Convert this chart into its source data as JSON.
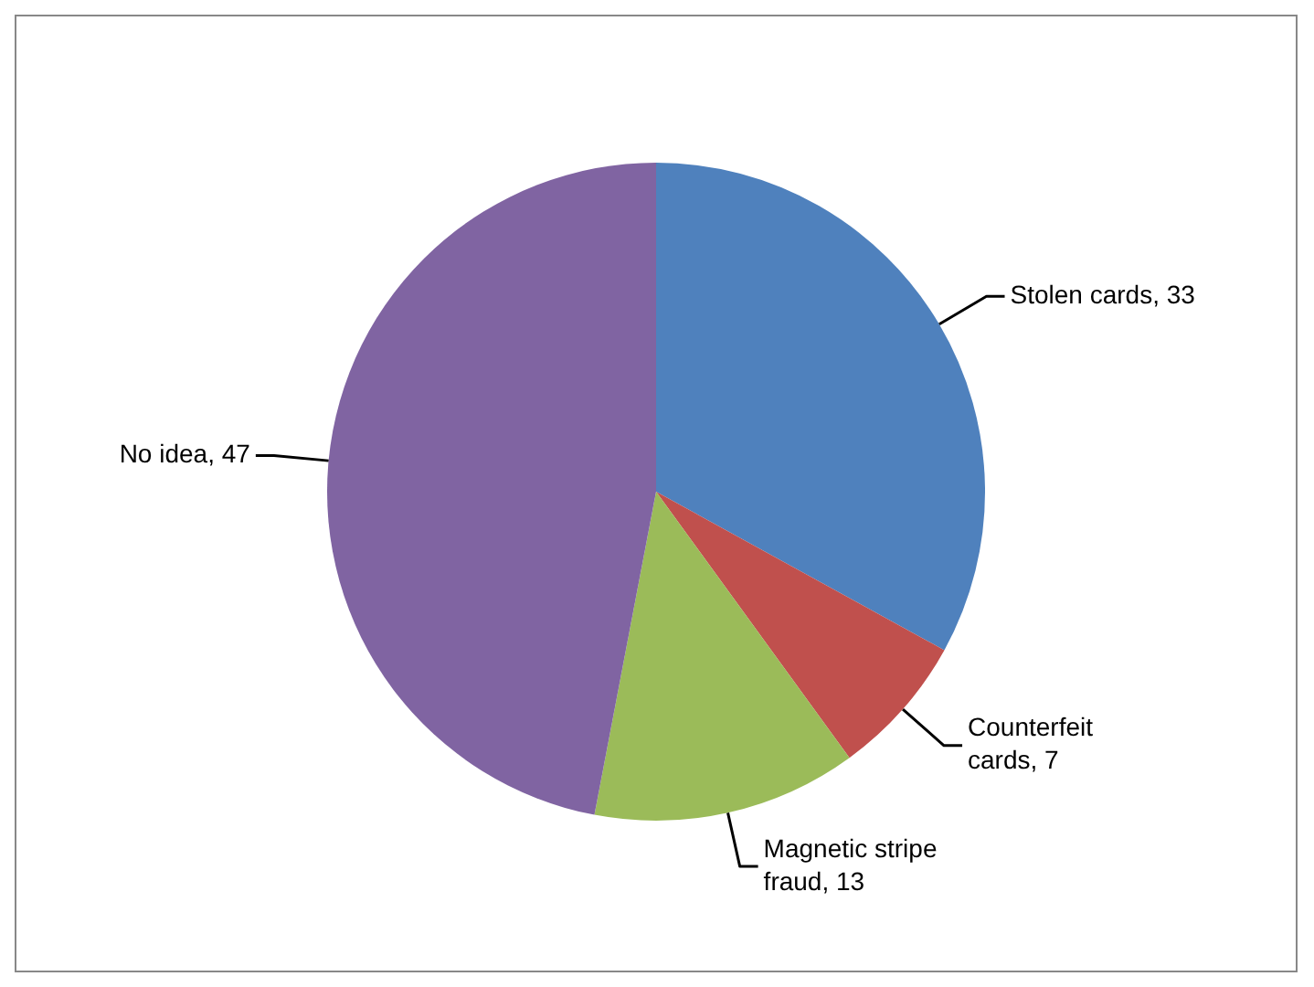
{
  "chart_data": {
    "type": "pie",
    "categories": [
      "Stolen cards",
      "Counterfeit cards",
      "Magnetic stripe fraud",
      "No idea"
    ],
    "values": [
      33,
      7,
      13,
      47
    ],
    "colors": [
      "#4f81bd",
      "#c0504d",
      "#9bbb59",
      "#8064a2"
    ],
    "value_labels": [
      ", 33",
      ", 7",
      ", 13",
      ", 47"
    ],
    "legend": false
  }
}
